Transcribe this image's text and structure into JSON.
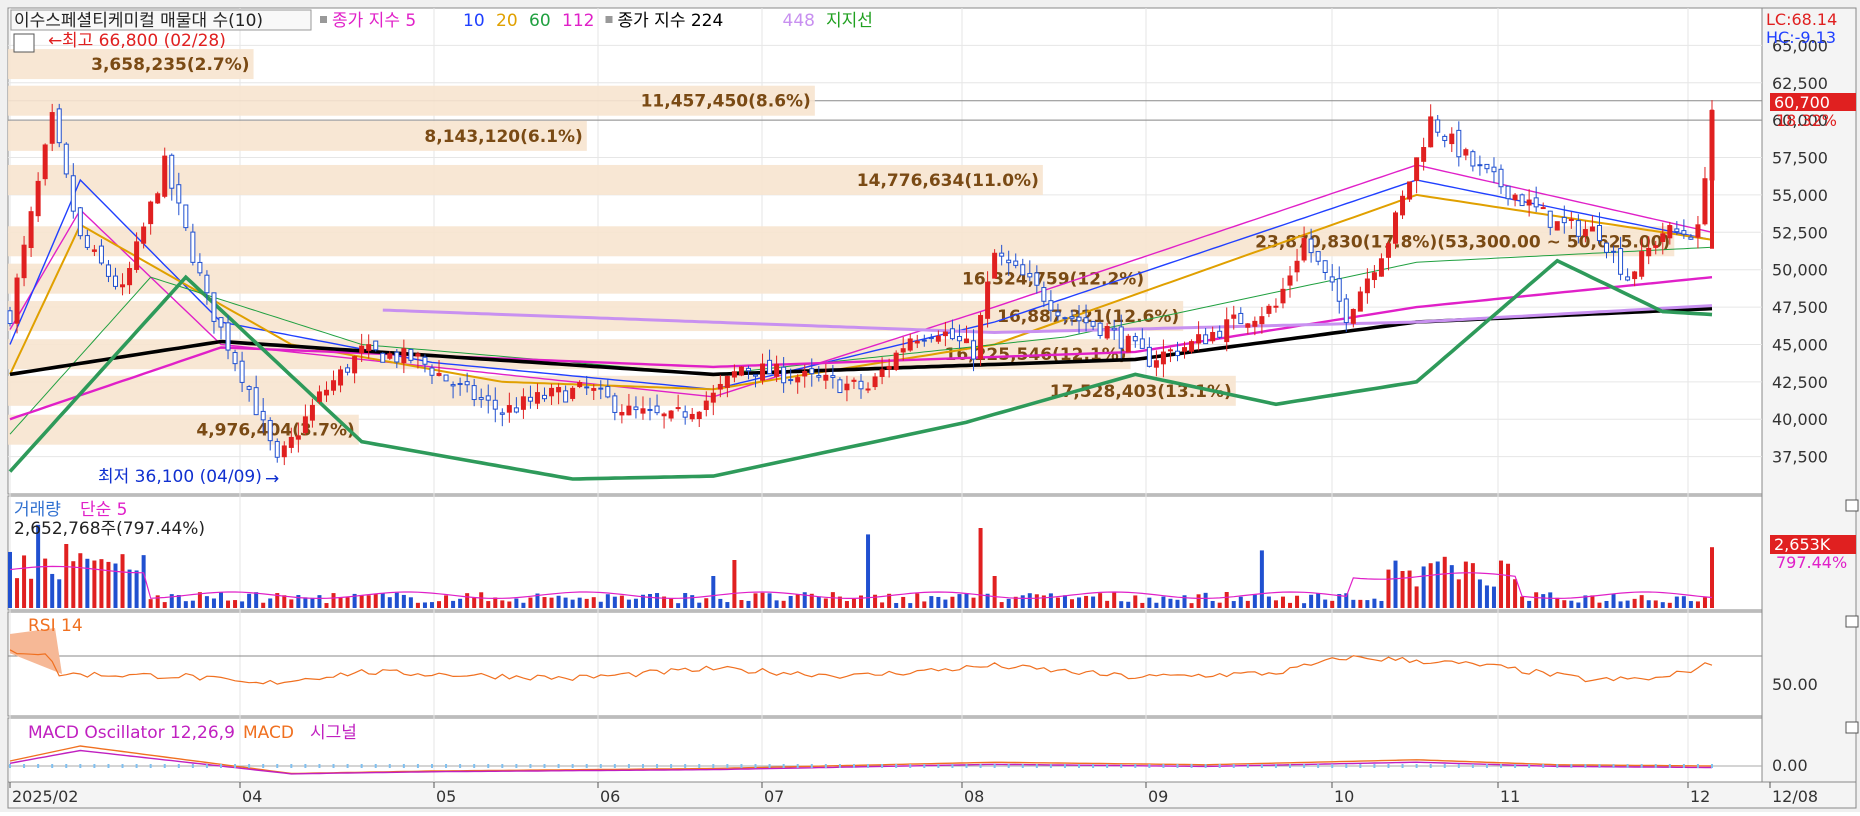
{
  "panels": {
    "price": {
      "title": "이수스페셜티케미컬 매물대 수(10)",
      "legend": [
        {
          "text": "종가 지수 5",
          "color": "#e020c8"
        },
        {
          "text": "10",
          "color": "#2040ff"
        },
        {
          "text": "20",
          "color": "#e0a000"
        },
        {
          "text": "60",
          "color": "#20a040"
        },
        {
          "text": "112",
          "color": "#e020c8"
        },
        {
          "text": "종가 지수 224",
          "color": "#000000"
        },
        {
          "text": "448",
          "color": "#c890f0"
        },
        {
          "text": "지지선",
          "color": "#20a020"
        }
      ],
      "lc": "LC:68.14",
      "hc": "HC:-9.13",
      "current_price": "60,700",
      "current_change": "18.32%",
      "high_label": "최고 66,800 (02/28)",
      "low_label": "최저 36,100 (04/09)",
      "support_label": "23,870,830(17.8%)(53,300.00 ~ 50,625.00)",
      "volume_profile": [
        {
          "text": "3,658,235(2.7%)",
          "price": 63750,
          "len": 0.14
        },
        {
          "text": "11,457,450(8.6%)",
          "price": 61300,
          "len": 0.46
        },
        {
          "text": "8,143,120(6.1%)",
          "price": 58950,
          "len": 0.33
        },
        {
          "text": "14,776,634(11.0%)",
          "price": 56000,
          "len": 0.59
        },
        {
          "text": "23,870,830(17.8%)(53,300.00 ~ 50,625.00)",
          "price": 51900,
          "len": 0.95
        },
        {
          "text": "16,324,759(12.2%)",
          "price": 49400,
          "len": 0.65
        },
        {
          "text": "16,887,321(12.6%)",
          "price": 46900,
          "len": 0.67
        },
        {
          "text": "16,225,546(12.1%)",
          "price": 44350,
          "len": 0.64
        },
        {
          "text": "17,528,403(13.1%)",
          "price": 41900,
          "len": 0.7
        },
        {
          "text": "4,976,404(3.7%)",
          "price": 39300,
          "len": 0.2
        }
      ]
    },
    "volume": {
      "title": "거래량",
      "title2": "단순 5",
      "info": "2,652,768주(797.44%)",
      "last_value": "2,653K",
      "last_pct": "797.44%"
    },
    "rsi": {
      "title": "RSI 14",
      "tick": "50.00"
    },
    "macd": {
      "title": "MACD Oscillator 12,26,9",
      "title2": "MACD",
      "title3": "시그널",
      "tick": "0.00"
    }
  },
  "x_axis": {
    "labels": [
      "2025/02",
      "04",
      "05",
      "06",
      "07",
      "08",
      "09",
      "10",
      "11",
      "12",
      "12/08"
    ]
  },
  "chart_data": {
    "type": "line",
    "title": "이수스페셜티케미컬",
    "y_ticks": [
      "65,000",
      "62,500",
      "60,000",
      "57,500",
      "55,000",
      "52,500",
      "50,000",
      "47,500",
      "45,000",
      "42,500",
      "40,000",
      "37,500"
    ],
    "ylim": [
      35000,
      67500
    ],
    "closing_price_anchors": [
      [
        0,
        47000
      ],
      [
        6,
        60000
      ],
      [
        10,
        52000
      ],
      [
        16,
        48500
      ],
      [
        22,
        57000
      ],
      [
        28,
        48000
      ],
      [
        34,
        42000
      ],
      [
        38,
        37000
      ],
      [
        44,
        41500
      ],
      [
        50,
        44500
      ],
      [
        58,
        44000
      ],
      [
        64,
        42000
      ],
      [
        70,
        40500
      ],
      [
        76,
        41500
      ],
      [
        82,
        42000
      ],
      [
        88,
        40500
      ],
      [
        94,
        40000
      ],
      [
        100,
        41500
      ],
      [
        104,
        43500
      ],
      [
        110,
        43000
      ],
      [
        116,
        42500
      ],
      [
        122,
        42000
      ],
      [
        128,
        45500
      ],
      [
        132,
        46000
      ],
      [
        137,
        44500
      ],
      [
        140,
        51000
      ],
      [
        144,
        49500
      ],
      [
        150,
        47000
      ],
      [
        156,
        46000
      ],
      [
        162,
        44000
      ],
      [
        168,
        45000
      ],
      [
        174,
        46500
      ],
      [
        180,
        47500
      ],
      [
        184,
        52000
      ],
      [
        190,
        47000
      ],
      [
        196,
        52000
      ],
      [
        202,
        60000
      ],
      [
        208,
        57000
      ],
      [
        214,
        55000
      ],
      [
        220,
        53000
      ],
      [
        226,
        52500
      ],
      [
        230,
        49500
      ],
      [
        235,
        52500
      ],
      [
        240,
        52500
      ],
      [
        242,
        60700
      ]
    ],
    "ma_anchors": {
      "ma5": [
        [
          0,
          46000
        ],
        [
          10,
          54000
        ],
        [
          30,
          45000
        ],
        [
          60,
          43500
        ],
        [
          100,
          41500
        ],
        [
          140,
          47500
        ],
        [
          200,
          57000
        ],
        [
          242,
          52500
        ]
      ],
      "ma10": [
        [
          0,
          45000
        ],
        [
          10,
          56000
        ],
        [
          30,
          46500
        ],
        [
          60,
          43800
        ],
        [
          100,
          42000
        ],
        [
          140,
          46500
        ],
        [
          200,
          56000
        ],
        [
          242,
          52000
        ]
      ],
      "ma20": [
        [
          0,
          43000
        ],
        [
          10,
          53000
        ],
        [
          40,
          45000
        ],
        [
          70,
          42500
        ],
        [
          100,
          42000
        ],
        [
          140,
          45000
        ],
        [
          200,
          55000
        ],
        [
          242,
          52000
        ]
      ],
      "ma60": [
        [
          0,
          39000
        ],
        [
          20,
          49500
        ],
        [
          50,
          45000
        ],
        [
          100,
          43000
        ],
        [
          150,
          45500
        ],
        [
          200,
          50500
        ],
        [
          242,
          51500
        ]
      ],
      "ma112": [
        [
          0,
          40000
        ],
        [
          30,
          44800
        ],
        [
          100,
          43500
        ],
        [
          160,
          44500
        ],
        [
          200,
          47500
        ],
        [
          242,
          49500
        ]
      ],
      "ma224": [
        [
          0,
          43000
        ],
        [
          30,
          45200
        ],
        [
          100,
          43000
        ],
        [
          160,
          44000
        ],
        [
          200,
          46500
        ],
        [
          242,
          47400
        ]
      ],
      "ma448": [
        [
          53,
          47300
        ],
        [
          140,
          45800
        ],
        [
          200,
          46500
        ],
        [
          242,
          47600
        ]
      ],
      "support": [
        [
          0,
          36500
        ],
        [
          25,
          49500
        ],
        [
          50,
          38500
        ],
        [
          80,
          36000
        ],
        [
          100,
          36200
        ],
        [
          136,
          39800
        ],
        [
          160,
          43000
        ],
        [
          180,
          41000
        ],
        [
          200,
          42500
        ],
        [
          220,
          50600
        ],
        [
          235,
          47200
        ],
        [
          242,
          47000
        ]
      ]
    },
    "volume_spikes": [
      [
        4,
        2.6
      ],
      [
        8,
        2.0
      ],
      [
        17,
        1.2
      ],
      [
        100,
        1.0
      ],
      [
        103,
        1.5
      ],
      [
        122,
        2.3
      ],
      [
        138,
        2.5
      ],
      [
        140,
        1.0
      ],
      [
        178,
        1.8
      ],
      [
        196,
        1.2
      ],
      [
        202,
        1.4
      ],
      [
        204,
        1.6
      ],
      [
        242,
        1.9
      ]
    ],
    "rsi_anchors": [
      [
        0,
        72
      ],
      [
        5,
        70
      ],
      [
        7,
        50
      ],
      [
        25,
        48
      ],
      [
        35,
        40
      ],
      [
        50,
        52
      ],
      [
        80,
        46
      ],
      [
        100,
        55
      ],
      [
        120,
        48
      ],
      [
        140,
        58
      ],
      [
        160,
        47
      ],
      [
        180,
        51
      ],
      [
        190,
        66
      ],
      [
        200,
        63
      ],
      [
        210,
        58
      ],
      [
        225,
        44
      ],
      [
        235,
        46
      ],
      [
        242,
        60
      ]
    ],
    "macd_anchors": [
      [
        0,
        2
      ],
      [
        10,
        8
      ],
      [
        40,
        -3
      ],
      [
        60,
        -2
      ],
      [
        100,
        -1
      ],
      [
        140,
        1.5
      ],
      [
        170,
        0.5
      ],
      [
        200,
        2.5
      ],
      [
        220,
        0.5
      ],
      [
        242,
        0
      ]
    ]
  }
}
